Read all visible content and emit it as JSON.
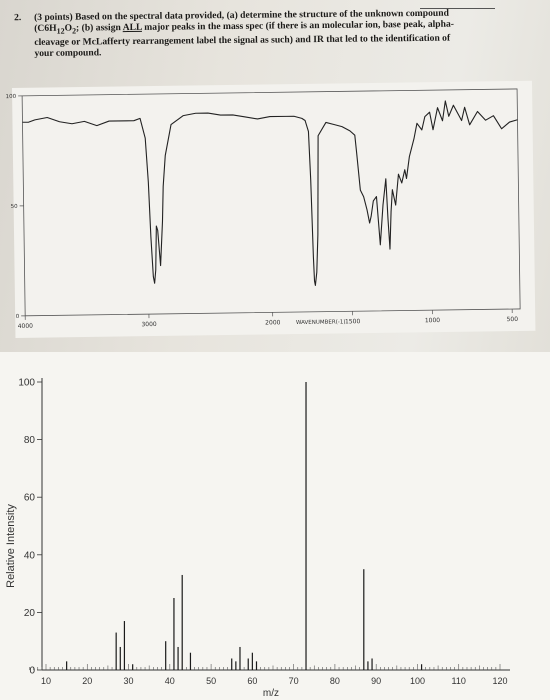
{
  "question": {
    "number": "2.",
    "line1_a": "(3 points) Based on the spectral data provided, (a) determine the structure of the unknown compound",
    "line2_a": "(C6H",
    "line2_b": "12",
    "line2_c": "O",
    "line2_d": "2",
    "line2_e": "; (b) assign ",
    "line2_all": "ALL",
    "line2_f": " major peaks in the mass spec (if there is an molecular ion, base peak, alpha-",
    "line3": "cleavage or McLafferty rearrangement label the signal as such) and IR that led to the identification of",
    "line4": "your compound."
  },
  "chart_data": [
    {
      "type": "line",
      "chart": "ir-spectrum",
      "xlabel": "WAVENUMBER(-1)",
      "ylabel": "",
      "x_ticks": [
        "4000",
        "3000",
        "2000",
        "1500",
        "1000",
        "500"
      ],
      "y_ticks": [
        "100",
        "50",
        "0"
      ],
      "xlim": [
        4000,
        450
      ],
      "ylim": [
        0,
        100
      ],
      "x": [
        4000,
        3950,
        3900,
        3800,
        3700,
        3600,
        3500,
        3450,
        3400,
        3300,
        3100,
        3050,
        3010,
        2990,
        2975,
        2960,
        2950,
        2940,
        2930,
        2920,
        2900,
        2880,
        2870,
        2850,
        2800,
        2700,
        2600,
        2500,
        2400,
        2300,
        2200,
        2100,
        2000,
        1900,
        1850,
        1800,
        1780,
        1760,
        1750,
        1740,
        1735,
        1730,
        1720,
        1710,
        1700,
        1650,
        1600,
        1550,
        1500,
        1470,
        1460,
        1440,
        1420,
        1400,
        1385,
        1375,
        1360,
        1340,
        1320,
        1300,
        1280,
        1270,
        1260,
        1250,
        1240,
        1220,
        1200,
        1180,
        1160,
        1150,
        1130,
        1100,
        1080,
        1050,
        1030,
        1000,
        980,
        950,
        920,
        900,
        880,
        850,
        800,
        780,
        750,
        700,
        650,
        600,
        550,
        500,
        450
      ],
      "y": [
        88,
        88,
        89,
        90,
        88,
        87,
        88,
        87,
        86,
        88,
        88,
        89,
        80,
        60,
        35,
        17,
        14,
        20,
        40,
        38,
        22,
        42,
        58,
        72,
        86,
        90,
        91,
        91,
        90,
        90,
        89,
        88,
        89,
        89,
        89,
        88,
        87,
        82,
        60,
        25,
        14,
        12,
        18,
        35,
        80,
        86,
        85,
        84,
        82,
        80,
        72,
        55,
        52,
        46,
        40,
        43,
        50,
        52,
        30,
        48,
        60,
        42,
        28,
        45,
        55,
        48,
        62,
        58,
        64,
        60,
        70,
        78,
        85,
        82,
        88,
        90,
        82,
        92,
        86,
        95,
        88,
        93,
        86,
        92,
        84,
        90,
        86,
        88,
        82,
        85,
        86
      ],
      "grid": false
    },
    {
      "type": "bar",
      "chart": "mass-spectrum",
      "xlabel": "m/z",
      "ylabel": "Relative Intensity",
      "x_ticks": [
        "10",
        "20",
        "30",
        "40",
        "50",
        "60",
        "70",
        "80",
        "90",
        "100",
        "110",
        "120"
      ],
      "y_ticks": [
        "0",
        "20",
        "40",
        "60",
        "80",
        "100"
      ],
      "xlim": [
        5,
        120
      ],
      "ylim": [
        0,
        100
      ],
      "x": [
        15,
        27,
        28,
        29,
        31,
        39,
        41,
        42,
        43,
        45,
        55,
        56,
        57,
        59,
        60,
        61,
        73,
        87,
        88,
        89,
        101
      ],
      "values": [
        3,
        13,
        8,
        17,
        2,
        10,
        25,
        8,
        33,
        6,
        4,
        3,
        8,
        4,
        6,
        3,
        100,
        35,
        3,
        4,
        2
      ],
      "grid": false
    }
  ]
}
